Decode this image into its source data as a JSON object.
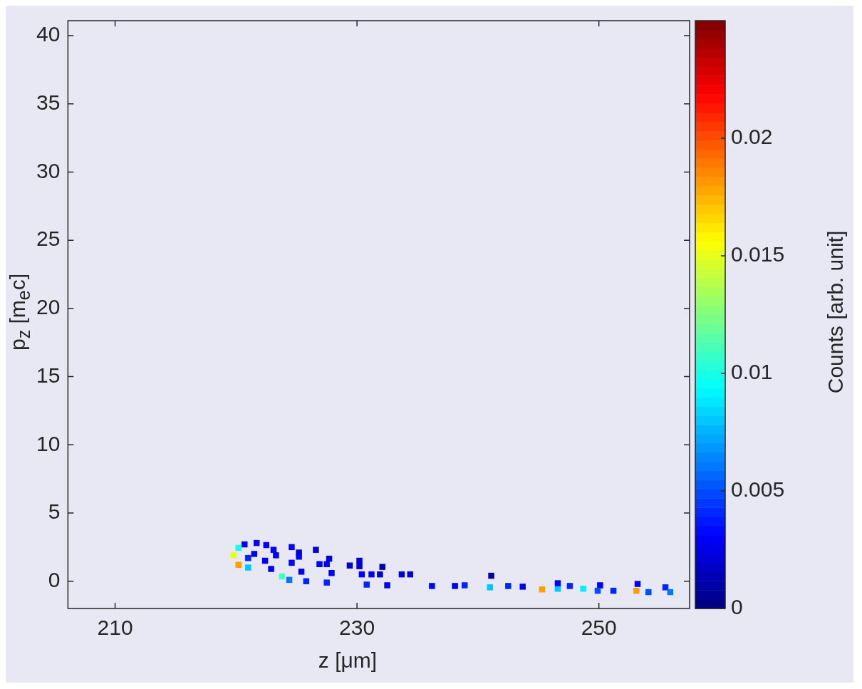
{
  "chart_data": {
    "type": "scatter",
    "xlabel": "z [μm]",
    "ylabel": "p$_{z}$ [m$_{e}$c]",
    "clabel": "Counts [arb. unit]",
    "marker": "square",
    "x": [
      220.2,
      219.8,
      220.2,
      221.0,
      221.0,
      220.7,
      221.7,
      222.5,
      221.5,
      223.1,
      223.3,
      222.4,
      224.6,
      224.6,
      222.9,
      225.2,
      225.2,
      225.4,
      223.8,
      224.4,
      225.8,
      227.5,
      226.9,
      227.5,
      227.9,
      226.6,
      227.7,
      229.4,
      230.2,
      230.4,
      231.2,
      231.9,
      230.8,
      232.5,
      233.7,
      234.4,
      236.2,
      238.1,
      230.2,
      232.1,
      238.9,
      241.0,
      242.5,
      243.7,
      245.3,
      246.6,
      247.6,
      248.7,
      250.1,
      249.9,
      251.2,
      253.1,
      253.2,
      254.1,
      255.5,
      255.9,
      246.6,
      241.1
    ],
    "values": [
      2.45,
      1.9,
      1.2,
      1.0,
      1.7,
      2.7,
      2.8,
      2.65,
      2.0,
      2.3,
      1.9,
      1.5,
      2.5,
      1.35,
      0.9,
      2.1,
      1.8,
      0.7,
      0.35,
      0.1,
      0.0,
      -0.1,
      1.25,
      1.25,
      0.6,
      2.3,
      1.65,
      1.15,
      1.1,
      0.5,
      0.5,
      0.5,
      -0.25,
      -0.3,
      0.5,
      0.5,
      -0.35,
      -0.35,
      1.5,
      1.05,
      -0.3,
      -0.45,
      -0.35,
      -0.4,
      -0.6,
      -0.55,
      -0.35,
      -0.55,
      -0.3,
      -0.7,
      -0.7,
      -0.7,
      -0.2,
      -0.8,
      -0.45,
      -0.8,
      -0.15,
      0.4
    ],
    "cvalues": [
      0.01,
      0.015,
      0.018,
      0.008,
      0.004,
      0.003,
      0.003,
      0.003,
      0.003,
      0.003,
      0.003,
      0.003,
      0.003,
      0.003,
      0.003,
      0.002,
      0.003,
      0.003,
      0.011,
      0.006,
      0.004,
      0.004,
      0.003,
      0.003,
      0.003,
      0.002,
      0.002,
      0.002,
      0.002,
      0.003,
      0.003,
      0.002,
      0.004,
      0.003,
      0.002,
      0.002,
      0.003,
      0.003,
      0.002,
      0.001,
      0.004,
      0.008,
      0.004,
      0.003,
      0.018,
      0.008,
      0.004,
      0.009,
      0.003,
      0.005,
      0.004,
      0.018,
      0.003,
      0.005,
      0.004,
      0.006,
      0.003,
      0.001
    ],
    "clim": [
      0,
      0.025
    ],
    "cticks": [
      0,
      0.005,
      0.01,
      0.015,
      0.02
    ],
    "xlim": [
      206.1,
      257.5
    ],
    "xticks": [
      210,
      230,
      250
    ],
    "ylim": [
      -2,
      41.1
    ],
    "yticks": [
      0,
      5,
      10,
      15,
      20,
      25,
      30,
      35,
      40
    ]
  }
}
